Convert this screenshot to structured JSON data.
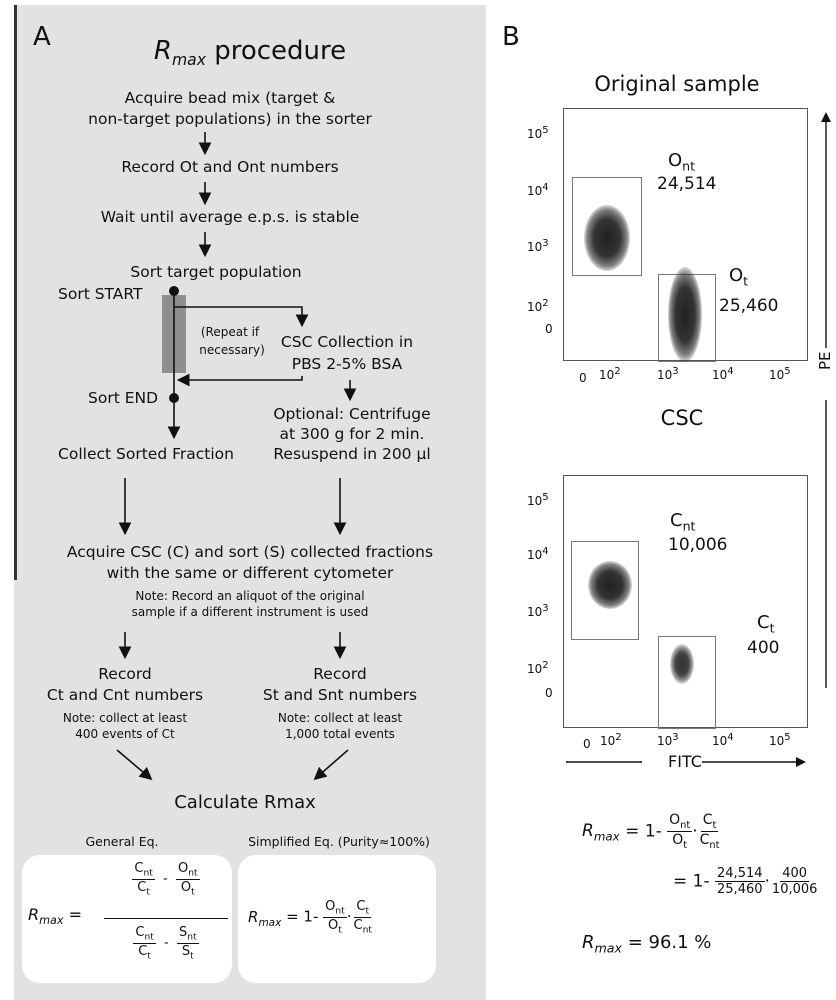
{
  "panelA": {
    "label": "A",
    "title_r": "R",
    "title_sub": "max",
    "title_rest": " procedure",
    "steps": {
      "acquire_line1": "Acquire bead mix (target &",
      "acquire_line2": "non-target populations) in the sorter",
      "record_o": "Record Ot and Ont numbers",
      "wait": "Wait until average e.p.s. is stable",
      "sort_target": "Sort target population",
      "sort_start": "Sort START",
      "sort_end": "Sort END",
      "repeat_line1": "(Repeat if",
      "repeat_line2": "necessary)",
      "csc_line1": "CSC Collection in",
      "csc_line2": "PBS 2-5% BSA",
      "optional_line1": "Optional: Centrifuge",
      "optional_line2": "at 300 g for 2 min.",
      "optional_line3": "Resuspend in 200 µl",
      "collect_sorted": "Collect Sorted Fraction",
      "acquire_csc_line1": "Acquire  CSC (C) and sort (S) collected fractions",
      "acquire_csc_line2": "with the same or different cytometer",
      "note_line1": "Note: Record an aliquot of the original",
      "note_line2": "sample if a different instrument is used",
      "record_left": "Record",
      "record_left_line2": "Ct and Cnt numbers",
      "note_left_line1": "Note: collect at least",
      "note_left_line2": "400 events of Ct",
      "record_right": "Record",
      "record_right_line2": "St and Snt numbers",
      "note_right_line1": "Note: collect at least",
      "note_right_line2": "1,000 total events",
      "calculate": "Calculate Rmax"
    },
    "general_eq_label": "General Eq.",
    "simplified_eq_label": "Simplified Eq. (Purity≈100%)"
  },
  "panelB": {
    "label": "B",
    "plot1": {
      "title": "Original sample",
      "gate_nt_label": "Ont",
      "gate_nt_value": "24,514",
      "gate_t_label": "Ot",
      "gate_t_value": "25,460"
    },
    "plot2": {
      "title": "CSC",
      "gate_nt_label": "Cnt",
      "gate_nt_value": "10,006",
      "gate_t_label": "Ct",
      "gate_t_value": "400"
    },
    "y_ticks": [
      "10^5",
      "10^4",
      "10^3",
      "10^2",
      "0"
    ],
    "x_ticks": [
      "0",
      "10^2",
      "10^3",
      "10^4",
      "10^5"
    ],
    "x_axis_label": "FITC",
    "y_axis_label": "PE",
    "calc": {
      "line1_ont": "Ont",
      "line1_ot": "Ot",
      "line1_ct": "Ct",
      "line1_cnt": "Cnt",
      "v_ont": "24,514",
      "v_ot": "25,460",
      "v_ct": "400",
      "v_cnt": "10,006",
      "result": "96.1 %"
    }
  }
}
